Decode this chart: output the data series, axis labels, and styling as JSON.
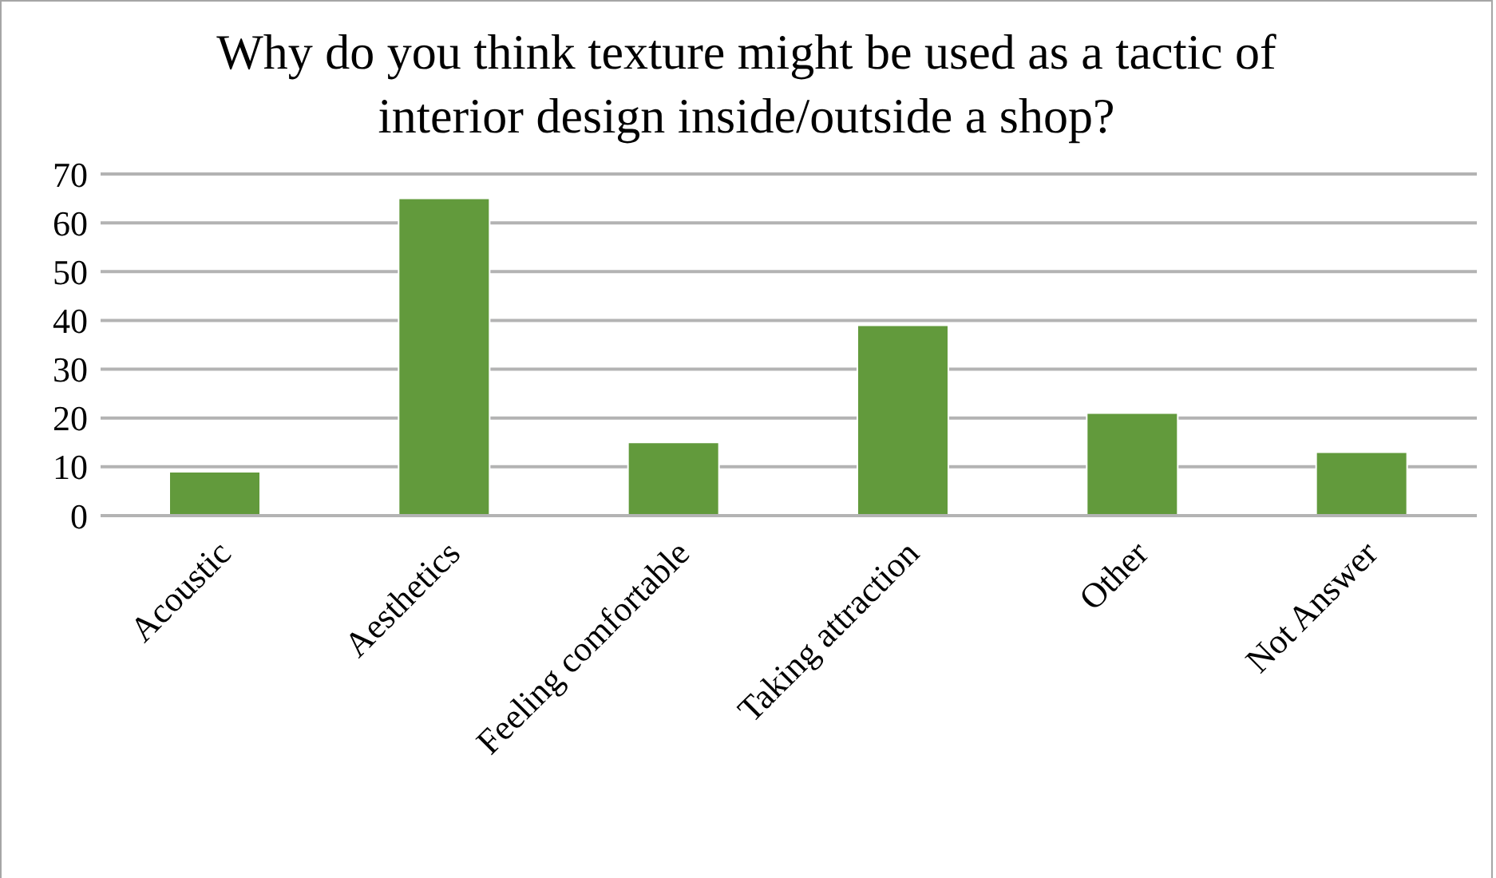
{
  "chart_data": {
    "type": "bar",
    "title": "Why do you think texture might be used as a tactic of interior design inside/outside a shop?",
    "categories": [
      "Acoustic",
      "Aesthetics",
      "Feeling comfortable",
      "Taking attraction",
      "Other",
      "Not Answer"
    ],
    "values": [
      9,
      65,
      15,
      39,
      21,
      13
    ],
    "color": "#629a3c",
    "ylim": [
      0,
      70
    ],
    "yticks": [
      0,
      10,
      20,
      30,
      40,
      50,
      60,
      70
    ],
    "grid": "y"
  }
}
